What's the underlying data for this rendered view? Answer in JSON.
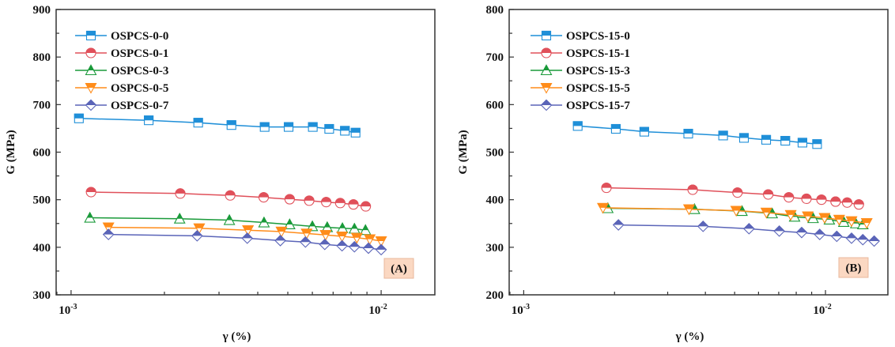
{
  "chart_data": [
    {
      "type": "line",
      "panel_label": "(A)",
      "xlabel": "γ (%)",
      "ylabel": "G (MPa)",
      "xscale": "log",
      "xlim": [
        0.000895,
        0.0149
      ],
      "ylim": [
        300,
        900
      ],
      "yticks": [
        "300",
        "400",
        "500",
        "600",
        "700",
        "800",
        "900"
      ],
      "xticks": [
        {
          "base": "10",
          "exp": "-3",
          "value": 0.001
        },
        {
          "base": "10",
          "exp": "-2",
          "value": 0.01
        }
      ],
      "grid": false,
      "legend_position": "top-left",
      "series": [
        {
          "name": "OSPCS-0-0",
          "color": "#1f8fd8",
          "marker": "square",
          "x": [
            0.00106,
            0.00178,
            0.00257,
            0.00329,
            0.00421,
            0.00503,
            0.00602,
            0.0068,
            0.00764,
            0.00827
          ],
          "y": [
            671,
            667,
            662,
            657,
            653,
            653,
            653,
            649,
            645,
            641
          ]
        },
        {
          "name": "OSPCS-0-1",
          "color": "#e0505a",
          "marker": "circle",
          "x": [
            0.00116,
            0.00225,
            0.00326,
            0.00418,
            0.00507,
            0.00586,
            0.00665,
            0.00738,
            0.00814,
            0.00892
          ],
          "y": [
            516,
            513,
            509,
            505,
            501,
            498,
            495,
            493,
            490,
            486
          ]
        },
        {
          "name": "OSPCS-0-3",
          "color": "#1a9a3a",
          "marker": "triangle-up",
          "x": [
            0.00115,
            0.00224,
            0.00324,
            0.00419,
            0.00507,
            0.006,
            0.0067,
            0.0075,
            0.0082,
            0.0089
          ],
          "y": [
            462,
            460,
            457,
            452,
            448,
            444,
            442,
            440,
            439,
            436
          ]
        },
        {
          "name": "OSPCS-0-5",
          "color": "#ff8c1a",
          "marker": "triangle-down",
          "x": [
            0.00132,
            0.00259,
            0.00372,
            0.00477,
            0.00575,
            0.00662,
            0.00748,
            0.00835,
            0.00919,
            0.01
          ],
          "y": [
            442,
            440,
            436,
            433,
            429,
            426,
            423,
            420,
            417,
            413
          ]
        },
        {
          "name": "OSPCS-0-7",
          "color": "#5a64b8",
          "marker": "diamond",
          "x": [
            0.00132,
            0.00255,
            0.0037,
            0.00473,
            0.0057,
            0.00658,
            0.00748,
            0.0082,
            0.0091,
            0.01
          ],
          "y": [
            427,
            424,
            419,
            414,
            411,
            406,
            403,
            401,
            398,
            395
          ]
        }
      ]
    },
    {
      "type": "line",
      "panel_label": "(B)",
      "xlabel": "γ (%)",
      "ylabel": "G (MPa)",
      "xscale": "log",
      "xlim": [
        0.000895,
        0.0161
      ],
      "ylim": [
        200,
        800
      ],
      "yticks": [
        "200",
        "300",
        "400",
        "500",
        "600",
        "700",
        "800"
      ],
      "xticks": [
        {
          "base": "10",
          "exp": "-3",
          "value": 0.001
        },
        {
          "base": "10",
          "exp": "-2",
          "value": 0.01
        }
      ],
      "grid": false,
      "legend_position": "top-left",
      "series": [
        {
          "name": "OSPCS-15-0",
          "color": "#1f8fd8",
          "marker": "square",
          "x": [
            0.00151,
            0.00202,
            0.00251,
            0.00351,
            0.00458,
            0.00537,
            0.00636,
            0.00736,
            0.00839,
            0.00938
          ],
          "y": [
            555,
            549,
            543,
            539,
            535,
            530,
            526,
            524,
            520,
            517
          ]
        },
        {
          "name": "OSPCS-15-1",
          "color": "#e0505a",
          "marker": "circle",
          "x": [
            0.00188,
            0.00363,
            0.00511,
            0.00646,
            0.00756,
            0.00865,
            0.0097,
            0.0108,
            0.0118,
            0.0129
          ],
          "y": [
            425,
            421,
            415,
            411,
            405,
            402,
            400,
            396,
            394,
            390
          ]
        },
        {
          "name": "OSPCS-15-3",
          "color": "#1a9a3a",
          "marker": "triangle-up",
          "x": [
            0.0019,
            0.00368,
            0.00529,
            0.00666,
            0.0079,
            0.0091,
            0.0103,
            0.0115,
            0.0126,
            0.0133
          ],
          "y": [
            382,
            380,
            376,
            371,
            364,
            361,
            358,
            353,
            350,
            348
          ]
        },
        {
          "name": "OSPCS-15-5",
          "color": "#ff8c1a",
          "marker": "triangle-down",
          "x": [
            0.00183,
            0.00353,
            0.00506,
            0.00637,
            0.00767,
            0.00874,
            0.00993,
            0.0111,
            0.0122,
            0.0137
          ],
          "y": [
            383,
            380,
            377,
            373,
            368,
            365,
            362,
            358,
            355,
            351
          ]
        },
        {
          "name": "OSPCS-15-7",
          "color": "#5a64b8",
          "marker": "diamond",
          "x": [
            0.00206,
            0.00393,
            0.00558,
            0.00703,
            0.00834,
            0.00957,
            0.0109,
            0.0122,
            0.0133,
            0.0145
          ],
          "y": [
            347,
            344,
            339,
            334,
            331,
            327,
            323,
            319,
            316,
            313
          ]
        }
      ]
    }
  ],
  "panel_label_fill": "#fbd8c2"
}
